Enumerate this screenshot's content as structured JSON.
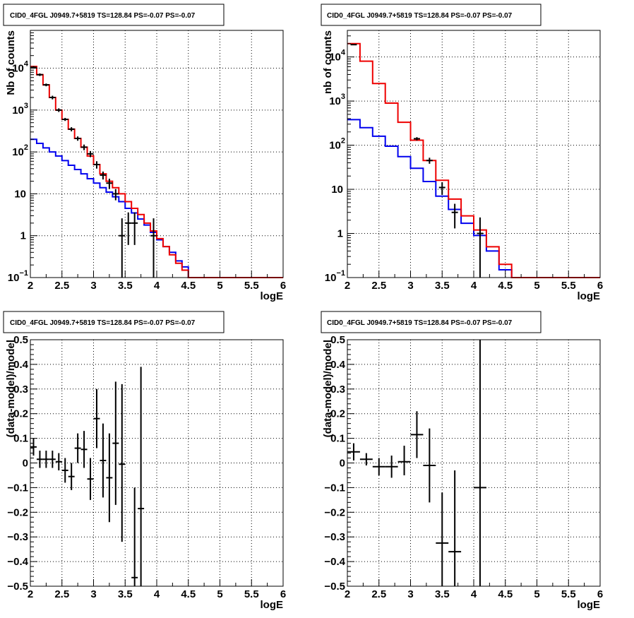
{
  "chart_data": [
    {
      "type": "line",
      "title": "CID0_4FGL J0949.7+5819 TS=128.84 PS=-0.07 PS=-0.07",
      "xlabel": "logE",
      "ylabel": "Nb of counts",
      "xlim": [
        2,
        6
      ],
      "ylim": [
        0.1,
        80000
      ],
      "yscale": "log",
      "grid": true,
      "xticks": [
        "2",
        "2.5",
        "3",
        "3.5",
        "4",
        "4.5",
        "5",
        "5.5",
        "6"
      ],
      "yticks": [
        {
          "v": 0.1,
          "m": "10",
          "e": "−1"
        },
        {
          "v": 1,
          "m": "1",
          "e": ""
        },
        {
          "v": 10,
          "m": "10",
          "e": ""
        },
        {
          "v": 100,
          "m": "10",
          "e": "2"
        },
        {
          "v": 1000,
          "m": "10",
          "e": "3"
        },
        {
          "v": 10000,
          "m": "10",
          "e": "4"
        }
      ],
      "bin_edges": [
        2.0,
        2.1,
        2.2,
        2.3,
        2.4,
        2.5,
        2.6,
        2.7,
        2.8,
        2.9,
        3.0,
        3.1,
        3.2,
        3.3,
        3.4,
        3.5,
        3.6,
        3.7,
        3.8,
        3.9,
        4.0,
        4.1,
        4.2,
        4.3,
        4.4,
        4.5,
        4.6,
        4.7,
        4.8,
        4.9,
        5.0,
        5.1,
        5.2,
        5.3,
        5.4,
        5.5,
        5.6,
        5.7,
        5.8,
        5.9,
        6.0
      ],
      "series": [
        {
          "color": "#0000ee",
          "values": [
            200,
            160,
            125,
            100,
            80,
            62,
            48,
            38,
            30,
            23,
            18,
            14,
            11,
            8.5,
            6.5,
            4.5,
            3.5,
            2.5,
            1.8,
            1.2,
            0.8,
            0.55,
            0.4,
            0.25,
            0.18,
            0.1,
            0.1,
            0.1,
            0.1,
            0.1,
            0.1,
            0.1,
            0.1,
            0.1,
            0.1,
            0.1,
            0.1,
            0.1,
            0.1,
            0.1
          ]
        },
        {
          "color": "#ee0000",
          "values": [
            11000,
            7000,
            4000,
            2000,
            1000,
            600,
            350,
            210,
            130,
            80,
            50,
            30,
            20,
            14,
            10,
            6.5,
            4.5,
            3.2,
            2.0,
            1.3,
            0.85,
            0.55,
            0.35,
            0.22,
            0.15,
            0.1,
            0.1,
            0.1,
            0.1,
            0.1,
            0.1,
            0.1,
            0.1,
            0.1,
            0.1,
            0.1,
            0.1,
            0.1,
            0.1,
            0.1
          ]
        }
      ],
      "points": [
        {
          "x": 2.05,
          "y": 10500,
          "lo": 9800,
          "hi": 11200
        },
        {
          "x": 2.15,
          "y": 7000,
          "lo": 6500,
          "hi": 7500
        },
        {
          "x": 2.25,
          "y": 4000,
          "lo": 3700,
          "hi": 4300
        },
        {
          "x": 2.35,
          "y": 2000,
          "lo": 1800,
          "hi": 2200
        },
        {
          "x": 2.45,
          "y": 1000,
          "lo": 900,
          "hi": 1100
        },
        {
          "x": 2.55,
          "y": 600,
          "lo": 550,
          "hi": 650
        },
        {
          "x": 2.65,
          "y": 350,
          "lo": 310,
          "hi": 390
        },
        {
          "x": 2.75,
          "y": 210,
          "lo": 185,
          "hi": 235
        },
        {
          "x": 2.85,
          "y": 130,
          "lo": 110,
          "hi": 150
        },
        {
          "x": 2.95,
          "y": 90,
          "lo": 75,
          "hi": 105
        },
        {
          "x": 3.05,
          "y": 50,
          "lo": 40,
          "hi": 60
        },
        {
          "x": 3.15,
          "y": 28,
          "lo": 22,
          "hi": 34
        },
        {
          "x": 3.25,
          "y": 18,
          "lo": 13,
          "hi": 23
        },
        {
          "x": 3.35,
          "y": 10,
          "lo": 7,
          "hi": 13
        },
        {
          "x": 3.45,
          "y": 1,
          "lo": 0.1,
          "hi": 2.6
        },
        {
          "x": 3.55,
          "y": 2,
          "lo": 0.6,
          "hi": 3.6
        },
        {
          "x": 3.65,
          "y": 2,
          "lo": 0.6,
          "hi": 3.6
        },
        {
          "x": 3.95,
          "y": 1,
          "lo": 0.1,
          "hi": 2.6
        }
      ]
    },
    {
      "type": "line",
      "title": "CID0_4FGL J0949.7+5819 TS=128.84 PS=-0.07 PS=-0.07",
      "xlabel": "logE",
      "ylabel": "nb of counts",
      "xlim": [
        2,
        6
      ],
      "ylim": [
        0.1,
        40000
      ],
      "yscale": "log",
      "grid": true,
      "xticks": [
        "2",
        "2.5",
        "3",
        "3.5",
        "4",
        "4.5",
        "5",
        "5.5",
        "6"
      ],
      "yticks": [
        {
          "v": 0.1,
          "m": "10",
          "e": "−1"
        },
        {
          "v": 1,
          "m": "1",
          "e": ""
        },
        {
          "v": 10,
          "m": "10",
          "e": ""
        },
        {
          "v": 100,
          "m": "10",
          "e": "2"
        },
        {
          "v": 1000,
          "m": "10",
          "e": "3"
        },
        {
          "v": 10000,
          "m": "10",
          "e": "4"
        }
      ],
      "bin_edges": [
        2.0,
        2.2,
        2.4,
        2.6,
        2.8,
        3.0,
        3.2,
        3.4,
        3.6,
        3.8,
        4.0,
        4.2,
        4.4,
        4.6,
        4.8,
        5.0,
        5.2,
        5.4,
        5.6,
        5.8,
        6.0
      ],
      "series": [
        {
          "color": "#0000ee",
          "values": [
            380,
            250,
            160,
            95,
            55,
            30,
            15,
            7,
            3.5,
            1.7,
            0.9,
            0.4,
            0.15,
            0.1,
            0.1,
            0.1,
            0.1,
            0.1,
            0.1,
            0.1
          ]
        },
        {
          "color": "#ee0000",
          "values": [
            20000,
            8000,
            2500,
            900,
            330,
            130,
            45,
            16,
            6,
            2.5,
            1.2,
            0.5,
            0.2,
            0.1,
            0.1,
            0.1,
            0.1,
            0.1,
            0.1,
            0.1
          ]
        }
      ],
      "points": [
        {
          "x": 2.1,
          "y": 19000,
          "lo": 18500,
          "hi": 19500
        },
        {
          "x": 3.1,
          "y": 140,
          "lo": 128,
          "hi": 152
        },
        {
          "x": 3.3,
          "y": 45,
          "lo": 38,
          "hi": 52
        },
        {
          "x": 3.5,
          "y": 11,
          "lo": 7.5,
          "hi": 14.5
        },
        {
          "x": 3.7,
          "y": 3,
          "lo": 1.3,
          "hi": 4.7
        },
        {
          "x": 4.1,
          "y": 1,
          "lo": 0.1,
          "hi": 2.3
        }
      ]
    },
    {
      "type": "scatter",
      "title": "CID0_4FGL J0949.7+5819 TS=128.84 PS=-0.07 PS=-0.07",
      "xlabel": "logE",
      "ylabel": "(data-model)/model",
      "xlim": [
        2,
        6
      ],
      "ylim": [
        -0.5,
        0.5
      ],
      "grid": true,
      "xticks": [
        "2",
        "2.5",
        "3",
        "3.5",
        "4",
        "4.5",
        "5",
        "5.5",
        "6"
      ],
      "yticks": [
        "−0.5",
        "−0.4",
        "−0.3",
        "−0.2",
        "−0.1",
        "0",
        "0.1",
        "0.2",
        "0.3",
        "0.4",
        "0.5"
      ],
      "xhalf": 0.05,
      "points": [
        {
          "x": 2.05,
          "y": 0.065,
          "lo": 0.03,
          "hi": 0.1
        },
        {
          "x": 2.15,
          "y": 0.015,
          "lo": -0.02,
          "hi": 0.05
        },
        {
          "x": 2.25,
          "y": 0.015,
          "lo": -0.02,
          "hi": 0.05
        },
        {
          "x": 2.35,
          "y": 0.015,
          "lo": -0.02,
          "hi": 0.05
        },
        {
          "x": 2.45,
          "y": 0.005,
          "lo": -0.03,
          "hi": 0.04
        },
        {
          "x": 2.55,
          "y": -0.03,
          "lo": -0.08,
          "hi": 0.02
        },
        {
          "x": 2.65,
          "y": -0.055,
          "lo": -0.11,
          "hi": 0.0
        },
        {
          "x": 2.75,
          "y": 0.06,
          "lo": 0.0,
          "hi": 0.12
        },
        {
          "x": 2.85,
          "y": 0.055,
          "lo": -0.02,
          "hi": 0.13
        },
        {
          "x": 2.95,
          "y": -0.065,
          "lo": -0.15,
          "hi": 0.02
        },
        {
          "x": 3.05,
          "y": 0.18,
          "lo": 0.06,
          "hi": 0.3
        },
        {
          "x": 3.15,
          "y": 0.01,
          "lo": -0.14,
          "hi": 0.16
        },
        {
          "x": 3.25,
          "y": -0.06,
          "lo": -0.24,
          "hi": 0.12
        },
        {
          "x": 3.35,
          "y": 0.08,
          "lo": -0.17,
          "hi": 0.33
        },
        {
          "x": 3.45,
          "y": -0.005,
          "lo": -0.32,
          "hi": 0.32
        },
        {
          "x": 3.65,
          "y": -0.465,
          "lo": -0.5,
          "hi": -0.1
        },
        {
          "x": 3.75,
          "y": -0.185,
          "lo": -0.5,
          "hi": 0.39
        }
      ]
    },
    {
      "type": "scatter",
      "title": "CID0_4FGL J0949.7+5819 TS=128.84 PS=-0.07 PS=-0.07",
      "xlabel": "logE",
      "ylabel": "(data-model)/model",
      "xlim": [
        2,
        6
      ],
      "ylim": [
        -0.5,
        0.5
      ],
      "grid": true,
      "xticks": [
        "2",
        "2.5",
        "3",
        "3.5",
        "4",
        "4.5",
        "5",
        "5.5",
        "6"
      ],
      "yticks": [
        "−0.5",
        "−0.4",
        "−0.3",
        "−0.2",
        "−0.1",
        "0",
        "0.1",
        "0.2",
        "0.3",
        "0.4",
        "0.5"
      ],
      "xhalf": 0.1,
      "points": [
        {
          "x": 2.1,
          "y": 0.045,
          "lo": 0.01,
          "hi": 0.08
        },
        {
          "x": 2.3,
          "y": 0.015,
          "lo": -0.01,
          "hi": 0.04
        },
        {
          "x": 2.5,
          "y": -0.015,
          "lo": -0.05,
          "hi": 0.02
        },
        {
          "x": 2.7,
          "y": -0.015,
          "lo": -0.06,
          "hi": 0.03
        },
        {
          "x": 2.9,
          "y": 0.005,
          "lo": -0.05,
          "hi": 0.07
        },
        {
          "x": 3.1,
          "y": 0.115,
          "lo": 0.02,
          "hi": 0.21
        },
        {
          "x": 3.3,
          "y": -0.01,
          "lo": -0.16,
          "hi": 0.14
        },
        {
          "x": 3.5,
          "y": -0.325,
          "lo": -0.5,
          "hi": -0.12
        },
        {
          "x": 3.7,
          "y": -0.36,
          "lo": -0.5,
          "hi": -0.03
        },
        {
          "x": 4.1,
          "y": -0.1,
          "lo": -0.5,
          "hi": 0.5
        }
      ]
    }
  ]
}
